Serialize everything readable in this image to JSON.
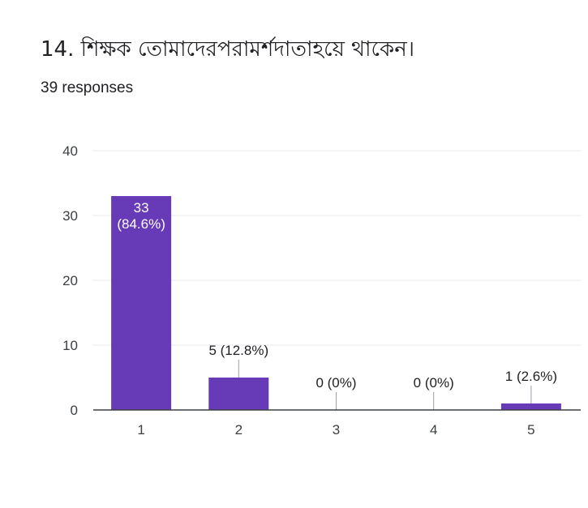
{
  "question": {
    "title": "14. শিক্ষক তোমাদেরপরামর্শদাতাহয়ে থাকেন।",
    "responses": "39 responses"
  },
  "colors": {
    "bar": "#673ab7",
    "grid": "#e8eaed",
    "axis": "#3c4043",
    "leader": "#9aa0a6"
  },
  "chart_data": {
    "type": "bar",
    "title": "14. শিক্ষক তোমাদেরপরামর্শদাতাহয়ে থাকেন।",
    "subtitle": "39 responses",
    "xlabel": "",
    "ylabel": "",
    "categories": [
      "1",
      "2",
      "3",
      "4",
      "5"
    ],
    "values": [
      33,
      5,
      0,
      0,
      1
    ],
    "data_labels": [
      "33\n(84.6%)",
      "5 (12.8%)",
      "0 (0%)",
      "0 (0%)",
      "1 (2.6%)"
    ],
    "ylim": [
      0,
      40
    ],
    "yticks": [
      0,
      10,
      20,
      30,
      40
    ],
    "grid": true,
    "legend": "none"
  }
}
